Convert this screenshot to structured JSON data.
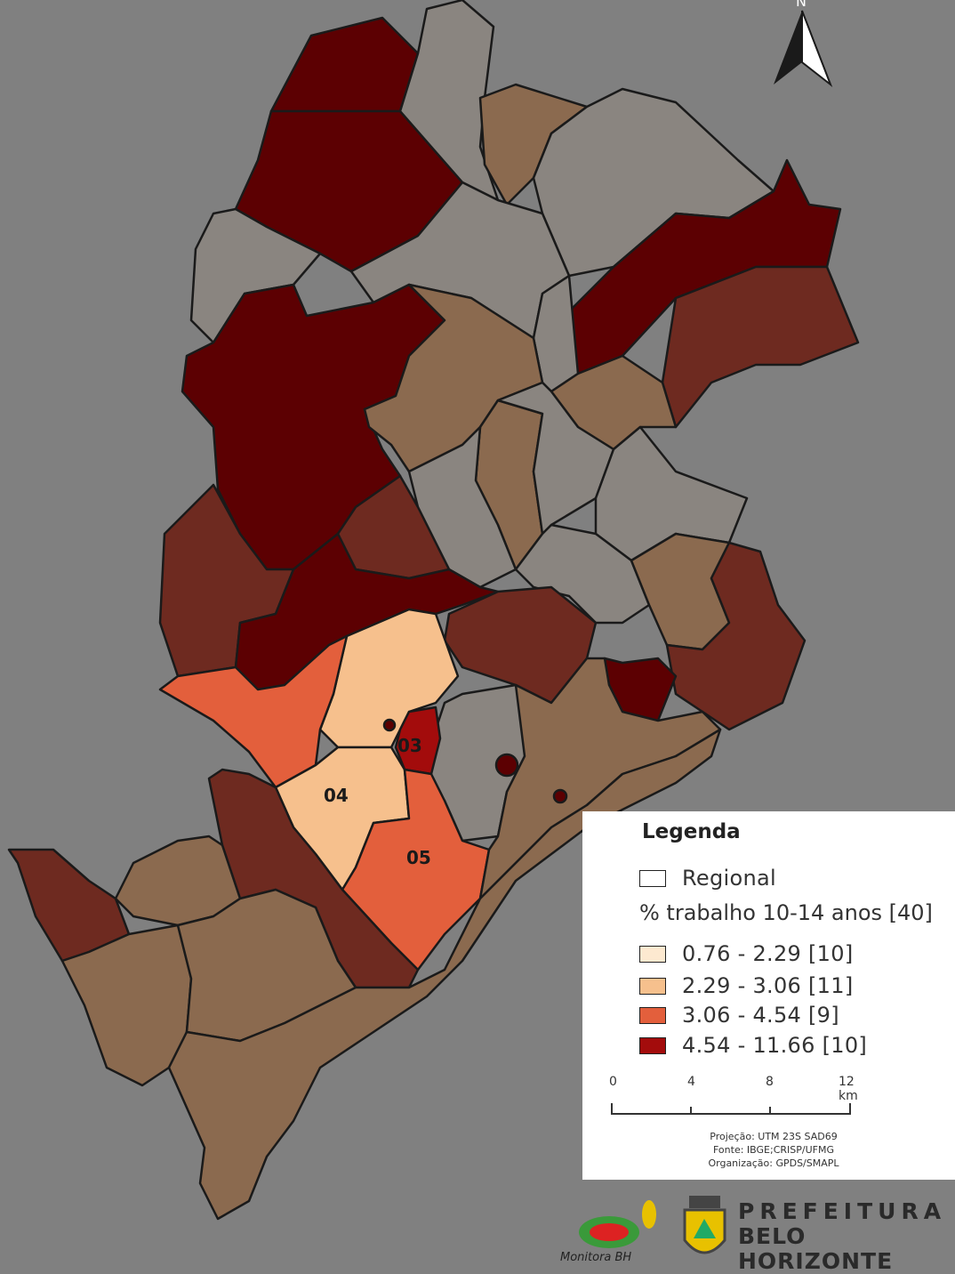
{
  "colors": {
    "background": "#808080",
    "class_gray": "#8a8580",
    "class_1": "#fde9d0",
    "class_2": "#f6c08d",
    "class_3": "#e35f3c",
    "class_4": "#5c0002",
    "tan": "#8b6a4f",
    "brown_red": "#6e2a20",
    "border": "#1a1a1a"
  },
  "map": {
    "north_label": "N",
    "district_labels": [
      {
        "id": "d03",
        "text": "03"
      },
      {
        "id": "d04",
        "text": "04"
      },
      {
        "id": "d05",
        "text": "05"
      }
    ]
  },
  "legend": {
    "title": "Legenda",
    "regional_label": "Regional",
    "variable_label": "% trabalho 10-14 anos [40]",
    "classes": [
      {
        "label": "0.76 - 2.29  [10]",
        "color": "#fde9d0"
      },
      {
        "label": "2.29 - 3.06  [11]",
        "color": "#f6c08d"
      },
      {
        "label": "3.06 - 4.54  [9]",
        "color": "#e35f3c"
      },
      {
        "label": "4.54 - 11.66  [10]",
        "color": "#a30c0c"
      }
    ],
    "scale_ticks": [
      "0",
      "4",
      "8",
      "12 km"
    ],
    "projection": "Projeção: UTM 23S SAD69",
    "source": "Fonte: IBGE;CRISP/UFMG",
    "organization": "Organização: GPDS/SMAPL"
  },
  "logos": {
    "monitora_text": "Monitora BH",
    "prefeitura_line1": "PREFEITURA",
    "prefeitura_line2": "BELO HORIZONTE"
  }
}
